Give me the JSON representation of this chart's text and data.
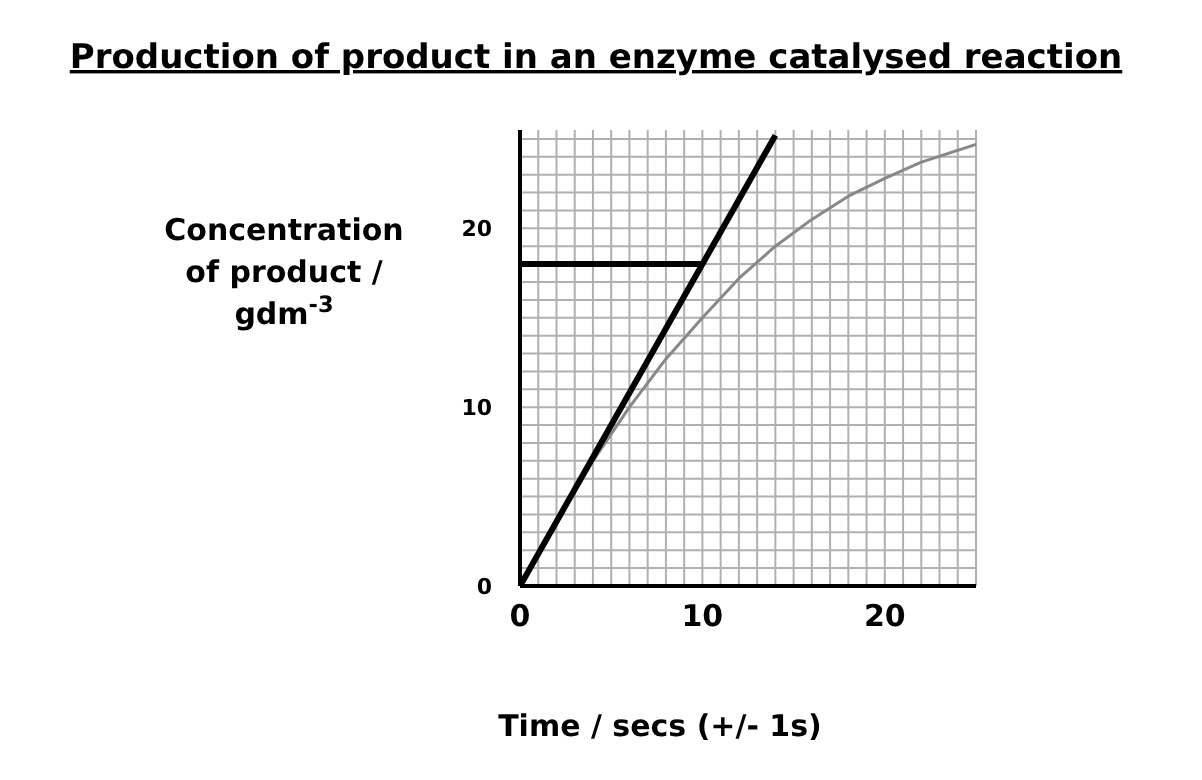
{
  "chart_data": {
    "type": "line",
    "title": "Production of product in an enzyme catalysed reaction",
    "xlabel": "Time / secs (+/- 1s)",
    "ylabel": "Concentration of product / gdm$^{-3}$",
    "xlim": [
      0,
      25
    ],
    "ylim": [
      0,
      25.5
    ],
    "xticks": [
      0,
      {
        "value": 1,
        "label": null
      },
      {
        "value": 2,
        "label": null
      },
      {
        "value": 3,
        "label": null
      },
      {
        "value": 4,
        "label": null
      },
      {
        "value": 5,
        "label": null
      },
      {
        "value": 6,
        "label": null
      },
      {
        "value": 7,
        "label": null
      },
      {
        "value": 8,
        "label": null
      },
      {
        "value": 9,
        "label": null
      },
      10,
      {
        "value": 11,
        "label": null
      },
      {
        "value": 12,
        "label": null
      },
      {
        "value": 13,
        "label": null
      },
      {
        "value": 14,
        "label": null
      },
      {
        "value": 15,
        "label": null
      },
      {
        "value": 16,
        "label": null
      },
      {
        "value": 17,
        "label": null
      },
      {
        "value": 18,
        "label": null
      },
      {
        "value": 19,
        "label": null
      },
      20,
      {
        "value": 21,
        "label": null
      },
      {
        "value": 22,
        "label": null
      },
      {
        "value": 23,
        "label": null
      },
      {
        "value": 24,
        "label": null
      },
      {
        "value": 25,
        "label": null
      }
    ],
    "yticks": [
      0,
      {
        "value": 1,
        "label": null
      },
      {
        "value": 2,
        "label": null
      },
      {
        "value": 3,
        "label": null
      },
      {
        "value": 4,
        "label": null
      },
      {
        "value": 5,
        "label": null
      },
      {
        "value": 6,
        "label": null
      },
      {
        "value": 7,
        "label": null
      },
      {
        "value": 8,
        "label": null
      },
      {
        "value": 9,
        "label": null
      },
      10,
      {
        "value": 11,
        "label": null
      },
      {
        "value": 12,
        "label": null
      },
      {
        "value": 13,
        "label": null
      },
      {
        "value": 14,
        "label": null
      },
      {
        "value": 15,
        "label": null
      },
      {
        "value": 16,
        "label": null
      },
      {
        "value": 17,
        "label": null
      },
      {
        "value": 18,
        "label": null
      },
      {
        "value": 19,
        "label": null
      },
      20,
      {
        "value": 21,
        "label": null
      },
      {
        "value": 22,
        "label": null
      },
      {
        "value": 23,
        "label": null
      },
      {
        "value": 24,
        "label": null
      },
      {
        "value": 25,
        "label": null
      }
    ],
    "grid": true,
    "marker": "none",
    "line_style": "solid",
    "series": [
      {
        "color": "#888888",
        "x": [
          0,
          2,
          4,
          6,
          8,
          10,
          12,
          14,
          16,
          18,
          20,
          22,
          25
        ],
        "values": [
          0,
          3.6,
          7,
          10,
          12.7,
          15,
          17.2,
          19,
          20.5,
          21.8,
          22.8,
          23.7,
          24.7
        ]
      },
      {
        "color": "#000000",
        "x": [
          0,
          14
        ],
        "values": [
          0,
          25.2
        ]
      },
      {
        "color": "#000000",
        "x": [
          0,
          10
        ],
        "values": [
          18,
          18
        ]
      }
    ]
  }
}
